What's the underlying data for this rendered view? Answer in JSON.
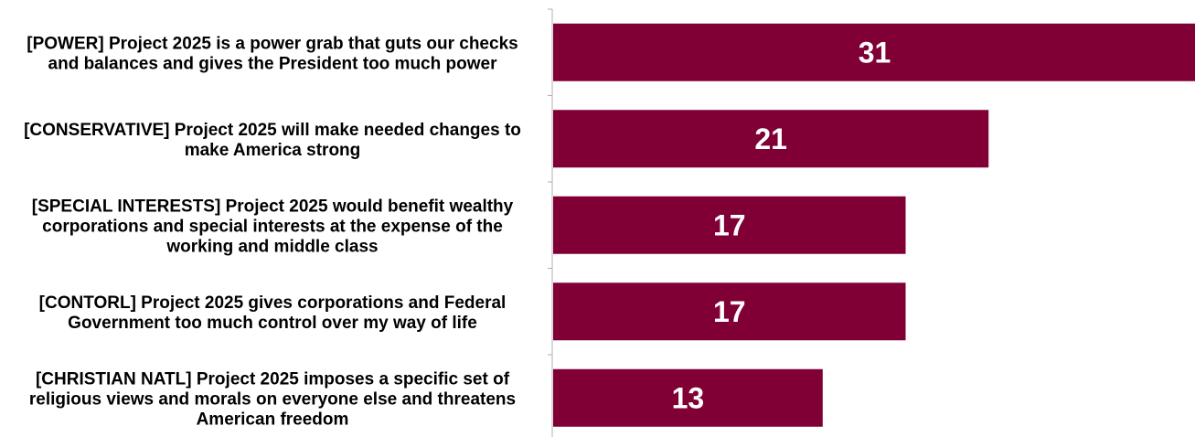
{
  "chart_data": {
    "type": "bar",
    "orientation": "horizontal",
    "categories": [
      [
        "[POWER] Project 2025 is a power grab that guts our checks",
        "and balances and gives the President too much power"
      ],
      [
        "[CONSERVATIVE] Project 2025 will make needed changes to",
        "make America strong"
      ],
      [
        "[SPECIAL INTERESTS] Project 2025 would benefit wealthy",
        "corporations and special interests at the expense of the",
        "working and middle class"
      ],
      [
        "[CONTORL] Project 2025 gives corporations and Federal",
        "Government too much control over my way of life"
      ],
      [
        "[CHRISTIAN NATL] Project 2025 imposes a specific set of",
        "religious views and morals on everyone else and threatens",
        "American freedom"
      ]
    ],
    "values": [
      31,
      21,
      17,
      17,
      13
    ],
    "xlim": [
      0,
      31
    ],
    "grid": false,
    "legend": "none",
    "bar_color": "#800036",
    "value_label_color": "#ffffff"
  }
}
